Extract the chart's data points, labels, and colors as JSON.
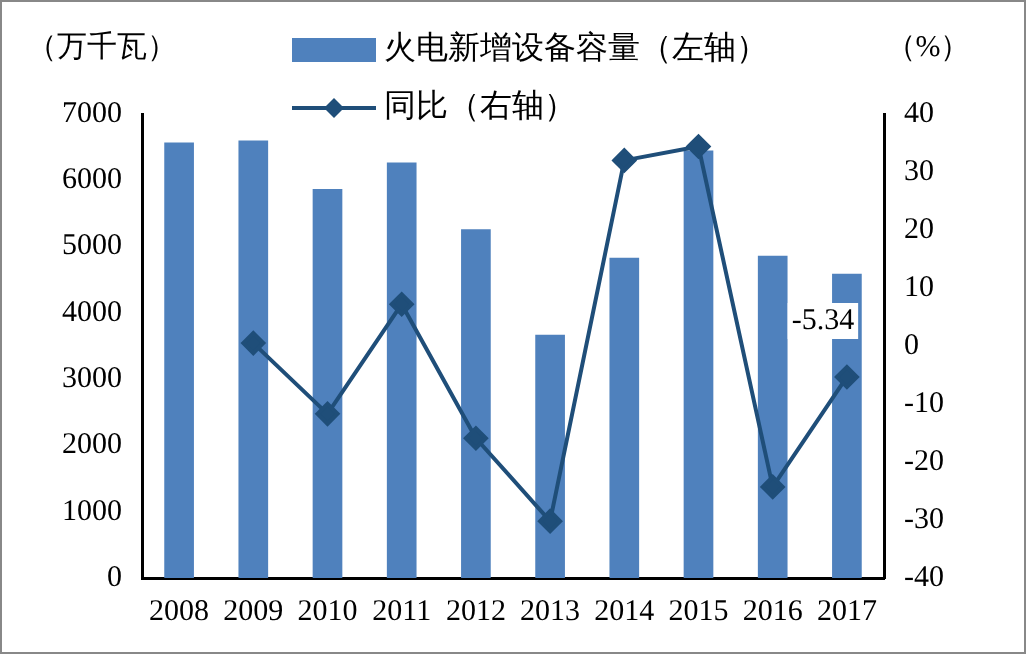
{
  "chart_data": {
    "type": "bar",
    "ylabel": "（万千瓦）",
    "y2label": "（%）",
    "categories": [
      "2008",
      "2009",
      "2010",
      "2011",
      "2012",
      "2013",
      "2014",
      "2015",
      "2016",
      "2017"
    ],
    "series": [
      {
        "name": "火电新增设备容量（左轴）",
        "color": "#4f81bd",
        "values": [
          6570,
          6600,
          5870,
          6270,
          5260,
          3670,
          4830,
          6450,
          4860,
          4590
        ]
      },
      {
        "name": "同比（右轴）",
        "type": "line",
        "axis": "y2",
        "color": "#1f4e79",
        "marker": "diamond",
        "values": [
          null,
          0.5,
          -11.7,
          7.2,
          -15.9,
          -30.2,
          32,
          34.4,
          -24.3,
          -5.34
        ],
        "value_labels": [
          null,
          null,
          null,
          null,
          null,
          null,
          null,
          null,
          null,
          "-5.34"
        ]
      }
    ],
    "ylim": [
      0,
      7000
    ],
    "yticks": [
      0,
      1000,
      2000,
      3000,
      4000,
      5000,
      6000,
      7000
    ],
    "y2lim": [
      -40,
      40
    ],
    "y2ticks": [
      -40,
      -30,
      -20,
      -10,
      0,
      10,
      20,
      30,
      40
    ],
    "grid": false,
    "legend": "top"
  }
}
